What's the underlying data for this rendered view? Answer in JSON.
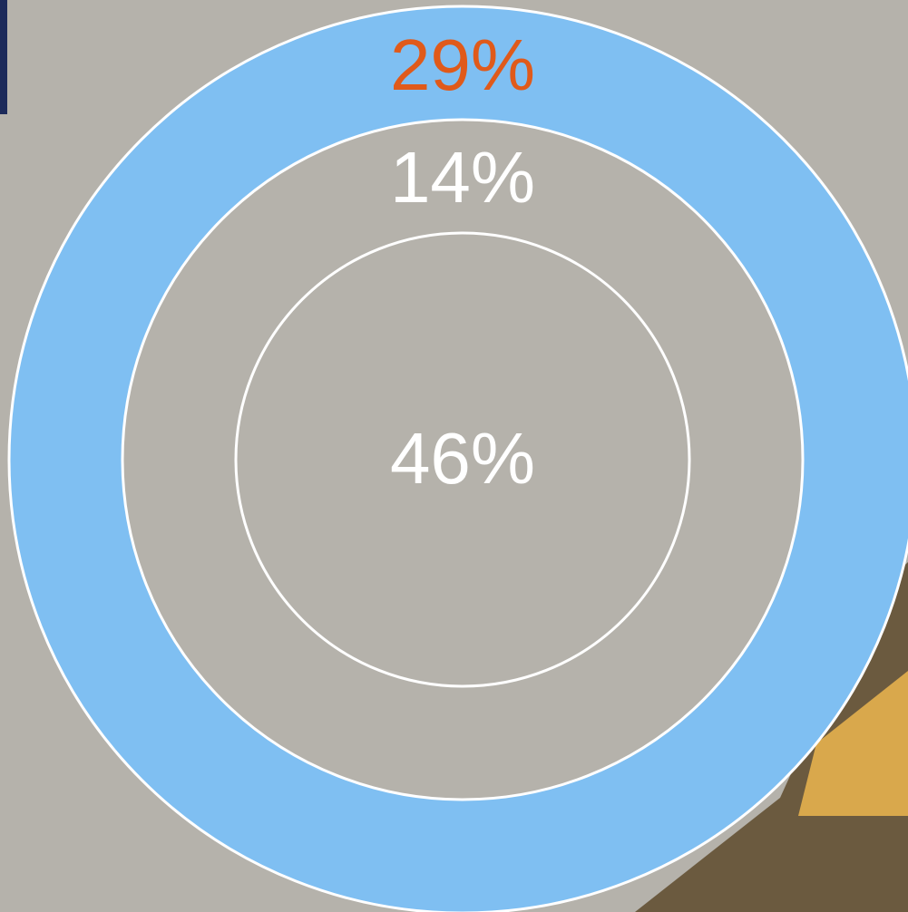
{
  "rings": [
    {
      "label": "29%"
    },
    {
      "label": "14%"
    },
    {
      "label": "46%"
    }
  ]
}
